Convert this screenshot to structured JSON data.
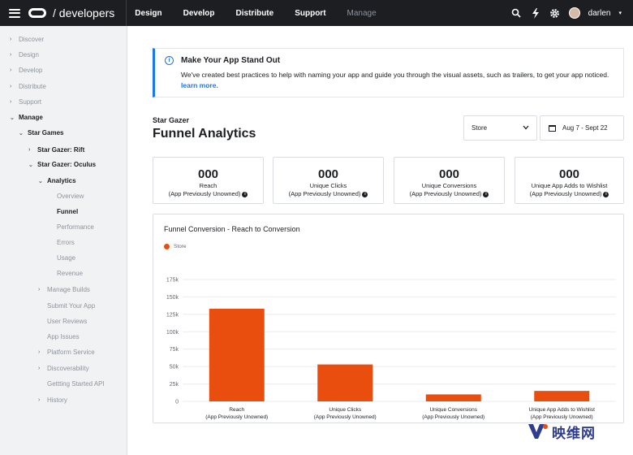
{
  "header": {
    "brand": "/ developers",
    "nav": [
      "Design",
      "Develop",
      "Distribute",
      "Support",
      "Manage"
    ],
    "user": "darlen"
  },
  "sidebar": {
    "items": [
      {
        "label": "Discover",
        "chev": "›"
      },
      {
        "label": "Design",
        "chev": "›"
      },
      {
        "label": "Develop",
        "chev": "›"
      },
      {
        "label": "Distribute",
        "chev": "›"
      },
      {
        "label": "Support",
        "chev": "›"
      },
      {
        "label": "Manage",
        "chev": "⌄"
      },
      {
        "label": "Star Games",
        "chev": "⌄"
      },
      {
        "label": "Star Gazer: Rift",
        "chev": "›"
      },
      {
        "label": "Star Gazer: Oculus",
        "chev": "⌄"
      },
      {
        "label": "Analytics",
        "chev": "⌄"
      },
      {
        "label": "Overview",
        "chev": ""
      },
      {
        "label": "Funnel",
        "chev": ""
      },
      {
        "label": "Performance",
        "chev": ""
      },
      {
        "label": "Errors",
        "chev": ""
      },
      {
        "label": "Usage",
        "chev": ""
      },
      {
        "label": "Revenue",
        "chev": ""
      },
      {
        "label": "Manage Builds",
        "chev": "›"
      },
      {
        "label": "Submit Your App",
        "chev": ""
      },
      {
        "label": "User Reviews",
        "chev": ""
      },
      {
        "label": "App Issues",
        "chev": ""
      },
      {
        "label": "Platform Service",
        "chev": "›"
      },
      {
        "label": "Discoverability",
        "chev": "›"
      },
      {
        "label": "Gettting Started API",
        "chev": ""
      },
      {
        "label": "History",
        "chev": "›"
      }
    ]
  },
  "banner": {
    "title": "Make Your App Stand Out",
    "text": "We've created best practices to help with naming your app and guide you through the visual assets, such as trailers, to get your app noticed.",
    "link": "learn more."
  },
  "page": {
    "app_name": "Star Gazer",
    "title": "Funnel Analytics",
    "store_select": "Store",
    "date_range": "Aug 7 - Sept 22"
  },
  "stats": [
    {
      "value": "000",
      "label1": "Reach",
      "label2": "(App Previously Unowned)"
    },
    {
      "value": "000",
      "label1": "Unique Clicks",
      "label2": "(App Previously Unowned)"
    },
    {
      "value": "000",
      "label1": "Unique Conversions",
      "label2": "(App Previously Unowned)"
    },
    {
      "value": "000",
      "label1": "Unique App Adds to Wishlist",
      "label2": "(App Previously Unowned)"
    }
  ],
  "chart_data": {
    "type": "bar",
    "title": "Funnel Conversion - Reach to Conversion",
    "legend": [
      "Store"
    ],
    "color": "#e94e0f",
    "categories": [
      [
        "Reach",
        "(App Previously Unowned)"
      ],
      [
        "Unique Clicks",
        "(App Previously Unowned)"
      ],
      [
        "Unique Conversions",
        "(App Previously Unowned)"
      ],
      [
        "Unique App Adds to Wishlist",
        "(App Previously Unowned)"
      ]
    ],
    "values": [
      133000,
      53000,
      10000,
      15000
    ],
    "yticks": [
      "0",
      "25k",
      "50k",
      "75k",
      "100k",
      "125k",
      "150k",
      "175k"
    ],
    "ylim": [
      0,
      175000
    ]
  },
  "watermark": {
    "text": "映维网"
  }
}
